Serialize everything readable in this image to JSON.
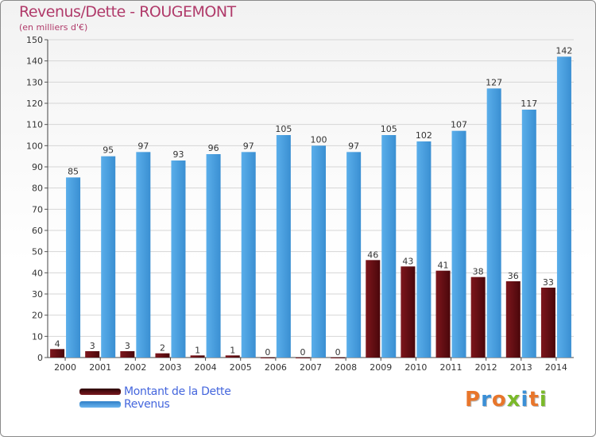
{
  "title": "Revenus/Dette - ROUGEMONT",
  "subtitle": "(en milliers d'€)",
  "logo_text": "Proxiti",
  "colors": {
    "dette": "#6b0f14",
    "revenus": "#4ea1e0",
    "title": "#b03a6a",
    "grid": "#d6d6d6"
  },
  "legend": [
    {
      "label": "Montant de la Dette",
      "color": "#6b0f14"
    },
    {
      "label": "Revenus",
      "color": "#4ea1e0"
    }
  ],
  "chart_data": {
    "type": "bar",
    "categories": [
      "2000",
      "2001",
      "2002",
      "2003",
      "2004",
      "2005",
      "2006",
      "2007",
      "2008",
      "2009",
      "2010",
      "2011",
      "2012",
      "2013",
      "2014"
    ],
    "series": [
      {
        "name": "Montant de la Dette",
        "values": [
          4,
          3,
          3,
          2,
          1,
          1,
          0,
          0,
          0,
          46,
          43,
          41,
          38,
          36,
          33
        ]
      },
      {
        "name": "Revenus",
        "values": [
          85,
          95,
          97,
          93,
          96,
          97,
          105,
          100,
          97,
          105,
          102,
          107,
          127,
          117,
          142
        ]
      }
    ],
    "ylim": [
      0,
      150
    ],
    "yticks": [
      0,
      10,
      20,
      30,
      40,
      50,
      60,
      70,
      80,
      90,
      100,
      110,
      120,
      130,
      140,
      150
    ],
    "grid": true,
    "legend_position": "bottom-left"
  }
}
